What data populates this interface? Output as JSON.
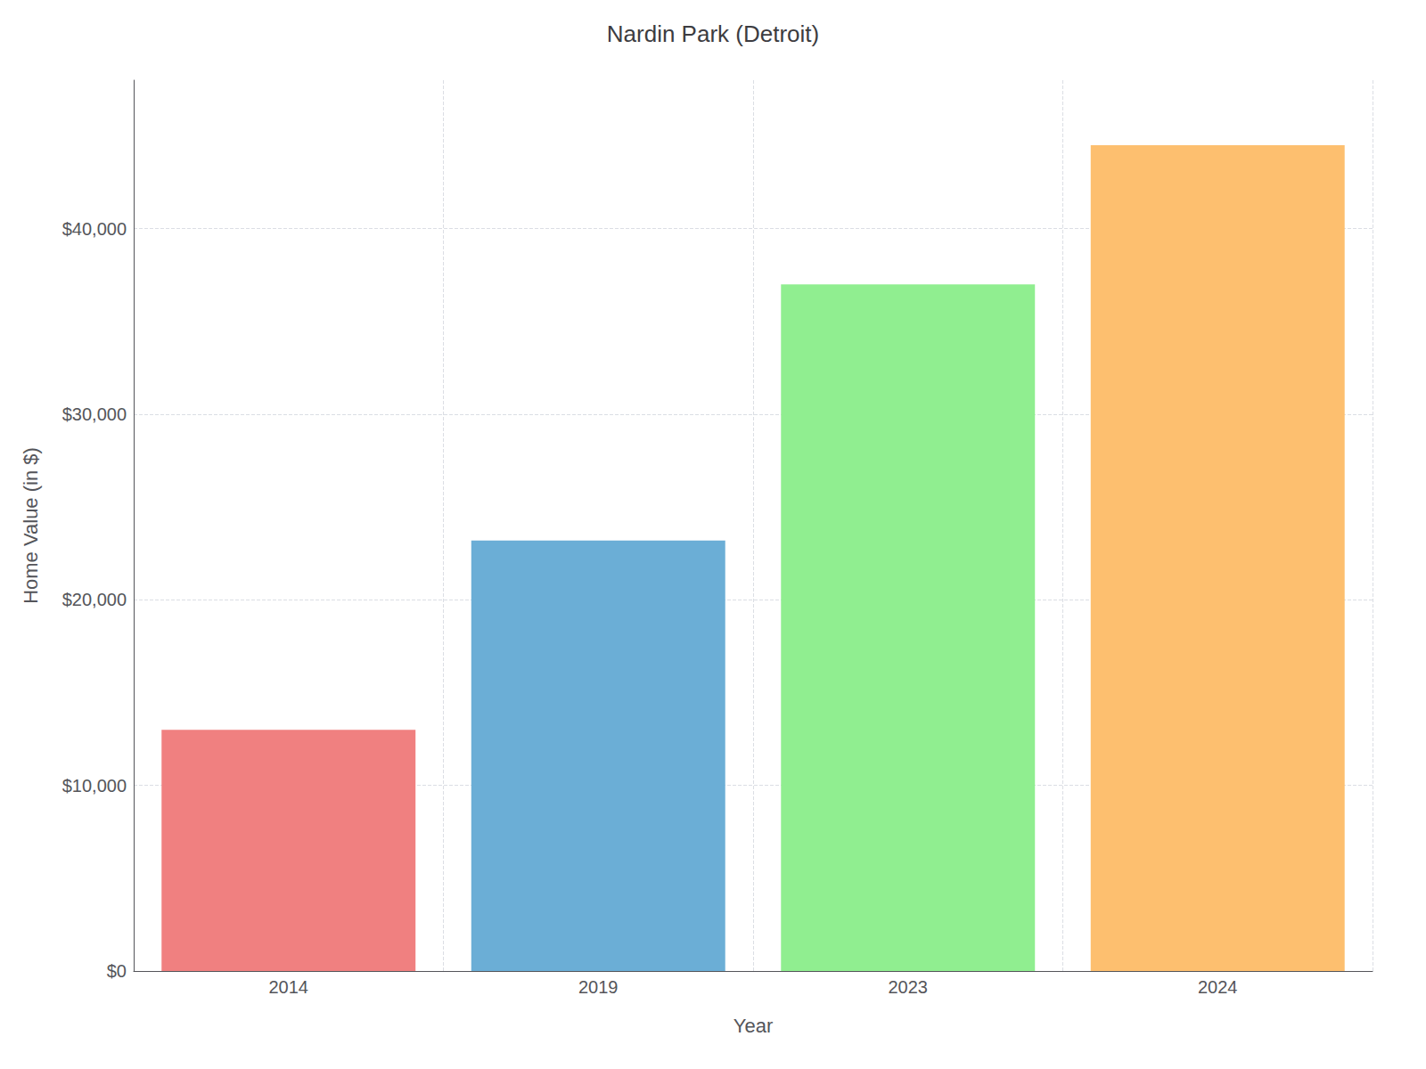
{
  "chart_data": {
    "type": "bar",
    "title": "Nardin Park (Detroit)",
    "categories": [
      "2014",
      "2019",
      "2023",
      "2024"
    ],
    "values": [
      13000,
      23200,
      37000,
      44500
    ],
    "colors": [
      "#F08080",
      "#6BAED6",
      "#90EE90",
      "#FDBF6F"
    ],
    "xlabel": "Year",
    "ylabel": "Home Value (in $)",
    "ylim": [
      0,
      48000
    ],
    "yticks": [
      {
        "value": 0,
        "label": "$0"
      },
      {
        "value": 10000,
        "label": "$10,000"
      },
      {
        "value": 20000,
        "label": "$20,000"
      },
      {
        "value": 30000,
        "label": "$30,000"
      },
      {
        "value": 40000,
        "label": "$40,000"
      }
    ],
    "grid": true
  }
}
